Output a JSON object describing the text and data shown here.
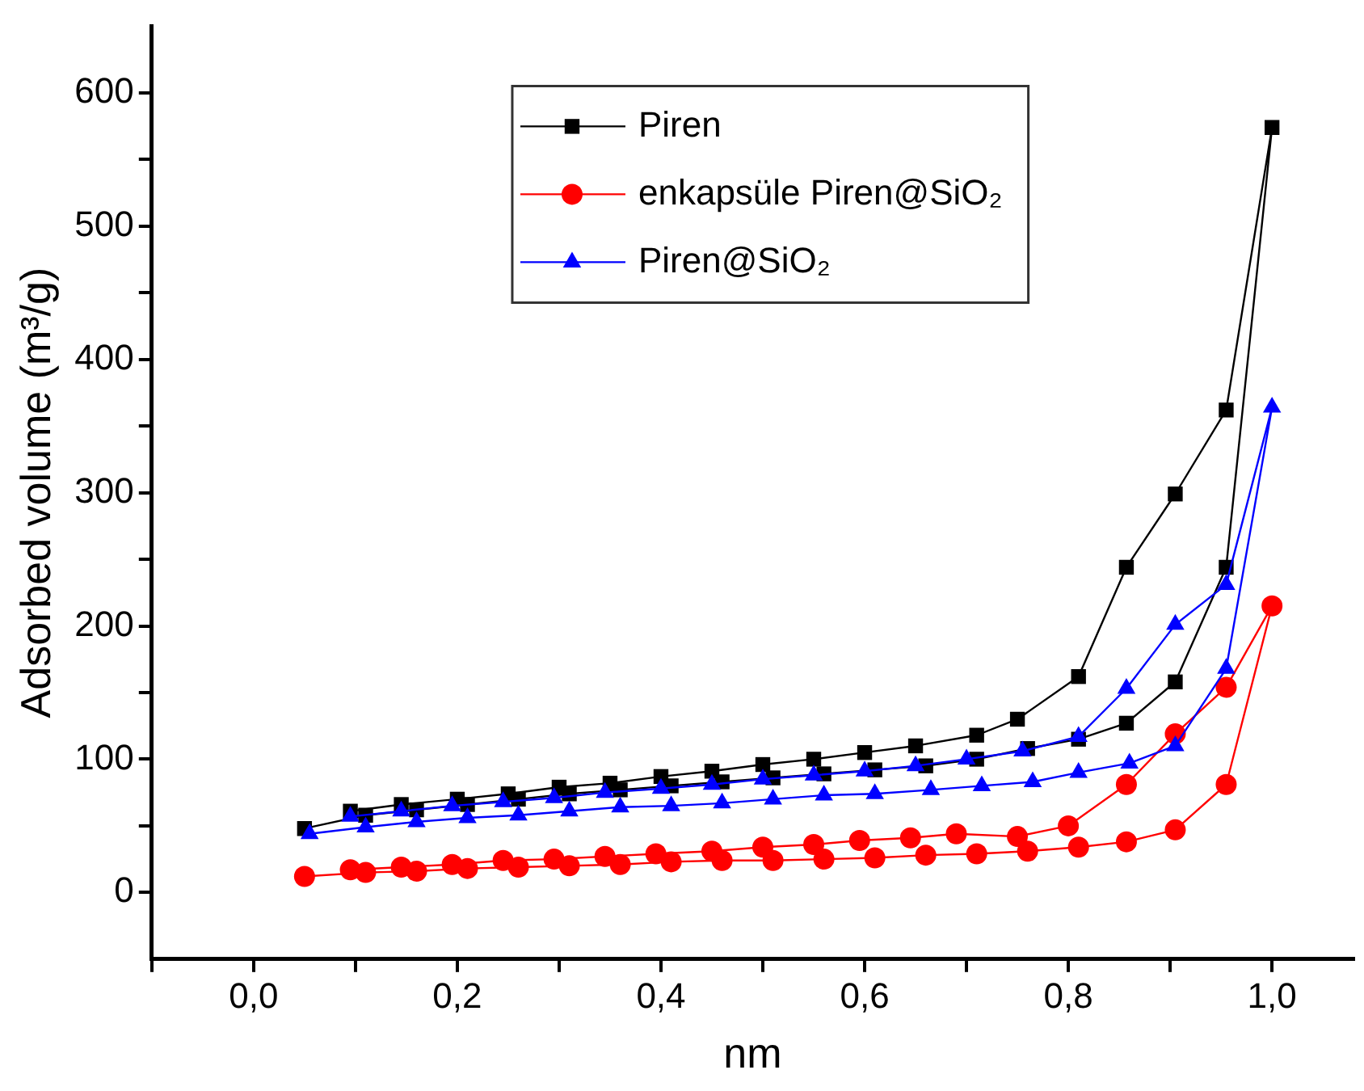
{
  "chart_data": {
    "type": "line",
    "xlabel": "nm",
    "ylabel": "Adsorbed volume (m³/g)",
    "xlim": [
      -0.1,
      1.08
    ],
    "ylim": [
      -50,
      650
    ],
    "xticks": [
      {
        "value": -0.1,
        "label": null
      },
      {
        "value": 0,
        "label": "0,0"
      },
      {
        "value": 0.1,
        "label": null
      },
      {
        "value": 0.2,
        "label": "0,2"
      },
      {
        "value": 0.3,
        "label": null
      },
      {
        "value": 0.4,
        "label": "0,4"
      },
      {
        "value": 0.5,
        "label": null
      },
      {
        "value": 0.6,
        "label": "0,6"
      },
      {
        "value": 0.7,
        "label": null
      },
      {
        "value": 0.8,
        "label": "0,8"
      },
      {
        "value": 0.9,
        "label": null
      },
      {
        "value": 1.0,
        "label": "1,0"
      }
    ],
    "yticks": [
      0,
      {
        "value": 50,
        "label": null
      },
      100,
      {
        "value": 150,
        "label": null
      },
      200,
      {
        "value": 250,
        "label": null
      },
      300,
      {
        "value": 350,
        "label": null
      },
      400,
      {
        "value": 450,
        "label": null
      },
      500,
      {
        "value": 550,
        "label": null
      },
      600
    ],
    "grid": false,
    "legend": "top",
    "line_style": "solid",
    "series": [
      {
        "name": "Piren",
        "color": "#000000",
        "marker": "square",
        "x": [
          0.05,
          0.11,
          0.16,
          0.21,
          0.26,
          0.31,
          0.36,
          0.41,
          0.46,
          0.51,
          0.56,
          0.61,
          0.66,
          0.71,
          0.76,
          0.81,
          0.857,
          0.905,
          0.955,
          1.0,
          0.955,
          0.905,
          0.857,
          0.81,
          0.75,
          0.71,
          0.65,
          0.6,
          0.55,
          0.5,
          0.45,
          0.4,
          0.35,
          0.3,
          0.25,
          0.2,
          0.145,
          0.095
        ],
        "values": [
          48,
          58,
          62,
          66,
          70,
          74,
          77,
          80,
          83,
          86,
          89,
          92,
          95,
          100,
          108,
          115,
          127,
          158,
          244,
          574,
          362,
          299,
          244,
          162,
          130,
          118,
          110,
          105,
          100,
          96,
          91,
          87,
          82,
          79,
          74,
          70,
          66,
          61
        ]
      },
      {
        "name": "enkapsüle Piren@SiO₂",
        "color": "#ff0000",
        "marker": "circle",
        "x": [
          0.05,
          0.11,
          0.16,
          0.21,
          0.26,
          0.31,
          0.36,
          0.41,
          0.46,
          0.51,
          0.56,
          0.61,
          0.66,
          0.71,
          0.76,
          0.81,
          0.857,
          0.905,
          0.955,
          1.0,
          0.955,
          0.905,
          0.857,
          0.8,
          0.75,
          0.69,
          0.645,
          0.595,
          0.55,
          0.5,
          0.45,
          0.395,
          0.345,
          0.295,
          0.245,
          0.195,
          0.145,
          0.095
        ],
        "values": [
          12,
          15,
          16,
          18,
          19,
          20,
          21,
          23,
          24,
          24,
          25,
          26,
          28,
          29,
          31,
          34,
          38,
          47,
          81,
          215,
          154,
          119,
          81,
          50,
          42,
          44,
          41,
          39,
          36,
          34,
          31,
          29,
          27,
          25,
          24,
          21,
          19,
          17
        ]
      },
      {
        "name": "Piren@SiO₂",
        "color": "#0000ff",
        "marker": "triangle",
        "x": [
          0.055,
          0.11,
          0.16,
          0.21,
          0.26,
          0.31,
          0.36,
          0.41,
          0.46,
          0.51,
          0.56,
          0.61,
          0.665,
          0.715,
          0.765,
          0.81,
          0.86,
          0.905,
          0.955,
          1.0,
          0.955,
          0.905,
          0.857,
          0.81,
          0.755,
          0.7,
          0.65,
          0.6,
          0.55,
          0.5,
          0.45,
          0.4,
          0.345,
          0.295,
          0.245,
          0.195,
          0.145,
          0.095
        ],
        "values": [
          44,
          49,
          53,
          56,
          58,
          61,
          64,
          65,
          67,
          70,
          73,
          74,
          77,
          80,
          83,
          90,
          97,
          110,
          168,
          364,
          231,
          201,
          153,
          117,
          106,
          100,
          95,
          91,
          88,
          85,
          81,
          78,
          75,
          71,
          68,
          65,
          61,
          57
        ]
      }
    ]
  }
}
